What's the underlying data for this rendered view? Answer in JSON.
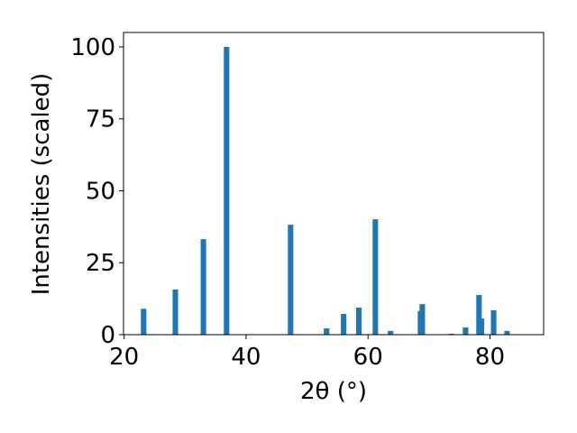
{
  "chart_data": {
    "type": "bar",
    "xlabel": "2θ (°)",
    "ylabel": "Intensities (scaled)",
    "x": [
      23.2,
      28.4,
      33.0,
      36.8,
      47.3,
      53.2,
      56.0,
      58.5,
      61.2,
      63.7,
      68.6,
      68.9,
      73.7,
      76.0,
      78.2,
      78.6,
      80.6,
      82.8
    ],
    "values": [
      9,
      15.7,
      33.2,
      100,
      38.2,
      2.2,
      7.2,
      9.4,
      40.1,
      1.3,
      8.2,
      10.6,
      0.3,
      2.5,
      13.8,
      5.6,
      8.5,
      1.3
    ],
    "color": "#1f77b4",
    "xlim": [
      19.9,
      88.8
    ],
    "xticks": [
      20,
      40,
      60,
      80
    ],
    "ylim": [
      0,
      105
    ],
    "yticks": [
      0,
      25,
      50,
      75,
      100
    ]
  }
}
